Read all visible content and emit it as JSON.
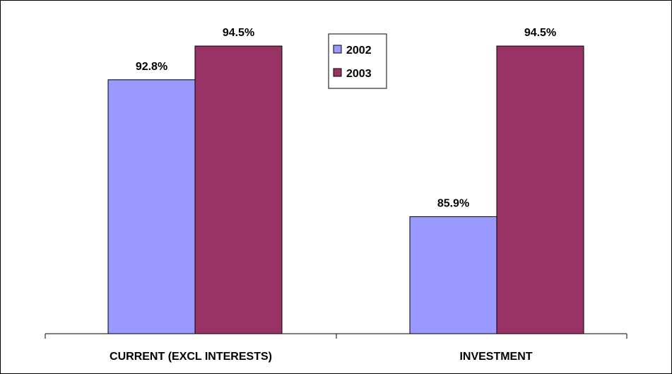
{
  "chart_data": {
    "type": "bar",
    "categories": [
      "CURRENT (EXCL INTERESTS)",
      "INVESTMENT"
    ],
    "series": [
      {
        "name": "2002",
        "color": "#9999FF",
        "values": [
          92.8,
          85.9
        ],
        "labels": [
          "92.8%",
          "85.9%"
        ]
      },
      {
        "name": "2003",
        "color": "#993366",
        "values": [
          94.5,
          94.5
        ],
        "labels": [
          "94.5%",
          "94.5%"
        ]
      }
    ],
    "ylim": [
      80,
      96
    ],
    "grid": false,
    "legend": "top-center"
  }
}
